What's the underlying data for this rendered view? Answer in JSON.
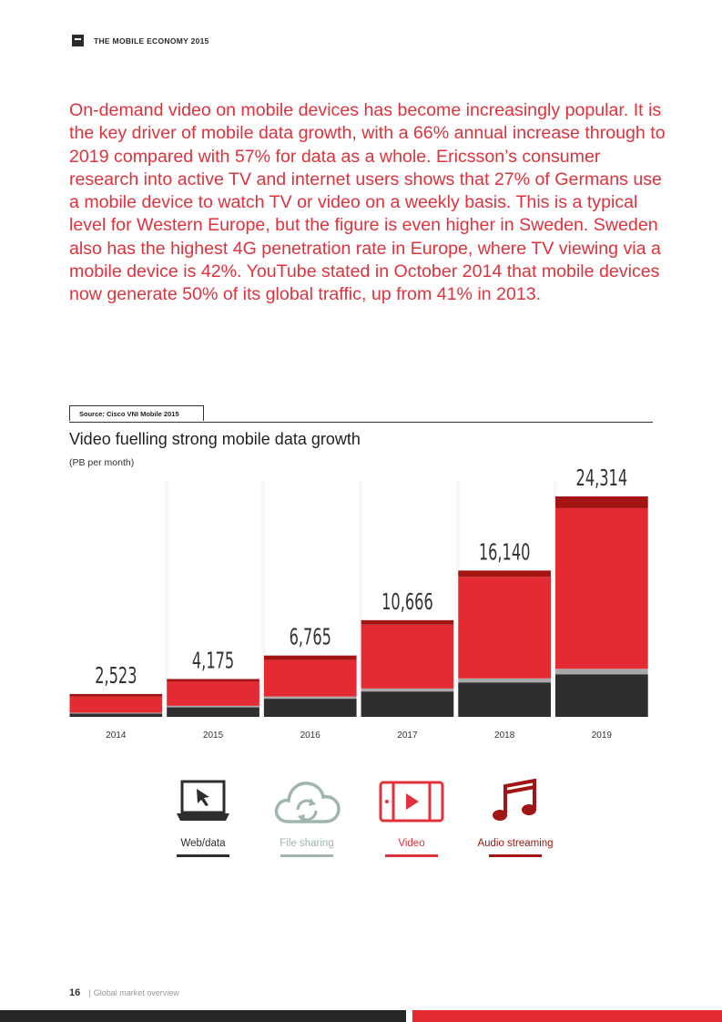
{
  "header": {
    "title": "THE MOBILE ECONOMY 2015"
  },
  "intro": "On-demand video on mobile devices has become increasingly popular. It is the key driver of mobile data growth, with a 66% annual increase through to 2019 compared with 57% for data as a whole. Ericsson’s consumer research into active TV and internet users shows that 27% of Germans use a mobile device to watch TV or video on a weekly basis. This is a typical level for Western Europe, but the figure is even higher in Sweden. Sweden also has the highest 4G penetration rate in Europe, where TV viewing via a mobile device is 42%. YouTube stated in October 2014 that mobile devices now generate 50% of its global traffic, up from 41% in 2013.",
  "source": "Source: Cisco VNI Mobile 2015",
  "chart_data": {
    "type": "bar",
    "stacked": true,
    "title": "Video fuelling strong mobile data growth",
    "subtitle": "(PB per month)",
    "categories": [
      "2014",
      "2015",
      "2016",
      "2017",
      "2018",
      "2019"
    ],
    "totals": [
      "2,523",
      "4,175",
      "6,765",
      "10,666",
      "16,140",
      "24,314"
    ],
    "total_values": [
      2523,
      4175,
      6765,
      10666,
      16140,
      24314
    ],
    "series": [
      {
        "name": "Web/data",
        "color": "#2e2e2e",
        "values": [
          350,
          1050,
          2000,
          2800,
          3800,
          4700
        ]
      },
      {
        "name": "File sharing",
        "color": "#a9a9a9",
        "values": [
          110,
          170,
          250,
          330,
          440,
          600
        ]
      },
      {
        "name": "Video",
        "color": "#e42a33",
        "values": [
          1763,
          2655,
          4015,
          7036,
          11200,
          17714
        ]
      },
      {
        "name": "Audio streaming",
        "color": "#a31515",
        "values": [
          300,
          300,
          500,
          500,
          700,
          1300
        ]
      }
    ],
    "ylim": [
      0,
      24314
    ],
    "grid": false,
    "legend_position": "bottom"
  },
  "legend": [
    {
      "label": "Web/data",
      "icon": "laptop-cursor-icon",
      "color": "#2e2e2e"
    },
    {
      "label": "File sharing",
      "icon": "cloud-sync-icon",
      "color": "#9fb5ad"
    },
    {
      "label": "Video",
      "icon": "video-player-icon",
      "color": "#e0323c"
    },
    {
      "label": "Audio streaming",
      "icon": "music-note-icon",
      "color": "#a31515"
    }
  ],
  "footer": {
    "page": "16",
    "section": "Global market overview"
  }
}
